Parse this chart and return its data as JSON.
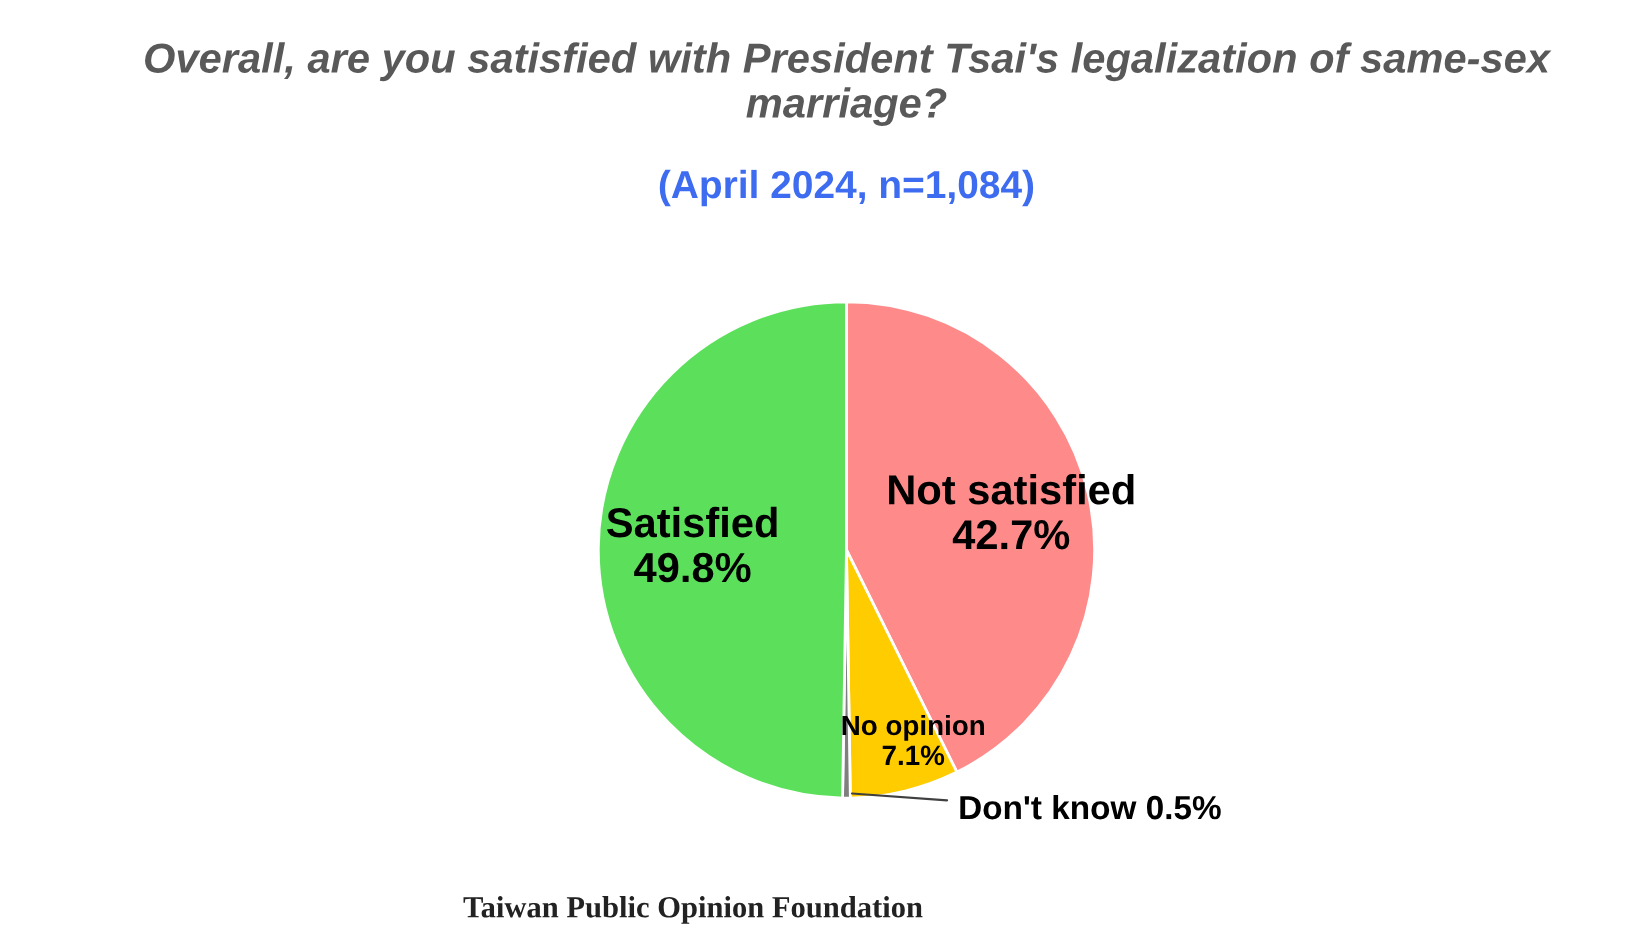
{
  "chart_data": {
    "type": "pie",
    "title": "Overall, are you satisfied with President Tsai's legalization of same-sex marriage?",
    "subtitle": "(April 2024, n=1,084)",
    "categories": [
      "Not satisfied",
      "No opinion",
      "Don't know",
      "Satisfied"
    ],
    "values": [
      42.7,
      7.1,
      0.5,
      49.8
    ],
    "value_labels": [
      "42.7%",
      "7.1%",
      "0.5%",
      "49.8%"
    ],
    "colors": [
      "#ff8a8a",
      "#ffcc00",
      "#7f7f7f",
      "#5ce05c"
    ],
    "annotations": [
      "Taiwan Public Opinion Foundation"
    ]
  }
}
